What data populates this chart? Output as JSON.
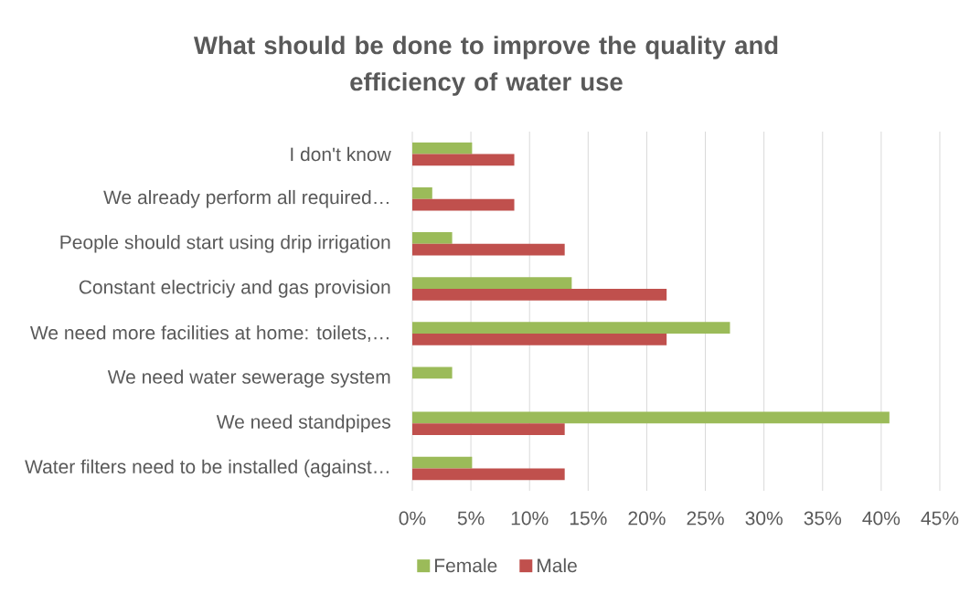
{
  "chart_data": {
    "type": "bar",
    "orientation": "horizontal",
    "title": "What should be done to improve the quality and efficiency of water use",
    "categories": [
      "I don't know",
      "We already perform all required…",
      "People should start using drip irrigation",
      "Constant electriciy and gas provision",
      "We need more facilities at home: toilets,…",
      "We need water sewerage system",
      "We need standpipes",
      "Water filters need to be installed (against…"
    ],
    "series": [
      {
        "name": "Female",
        "color": "#9bbb59",
        "values": [
          5.1,
          1.7,
          3.4,
          13.6,
          27.1,
          3.4,
          40.7,
          5.1
        ]
      },
      {
        "name": "Male",
        "color": "#c0504d",
        "values": [
          8.7,
          8.7,
          13.0,
          21.7,
          21.7,
          0,
          13.0,
          13.0
        ]
      }
    ],
    "xlim": [
      0,
      45
    ],
    "xticks": [
      {
        "value": 0,
        "label": "0%"
      },
      {
        "value": 5,
        "label": "5%"
      },
      {
        "value": 10,
        "label": "10%"
      },
      {
        "value": 15,
        "label": "15%"
      },
      {
        "value": 20,
        "label": "20%"
      },
      {
        "value": 25,
        "label": "25%"
      },
      {
        "value": 30,
        "label": "30%"
      },
      {
        "value": 35,
        "label": "35%"
      },
      {
        "value": 40,
        "label": "40%"
      },
      {
        "value": 45,
        "label": "45%"
      }
    ],
    "grid": "x",
    "legend": "bottom"
  }
}
